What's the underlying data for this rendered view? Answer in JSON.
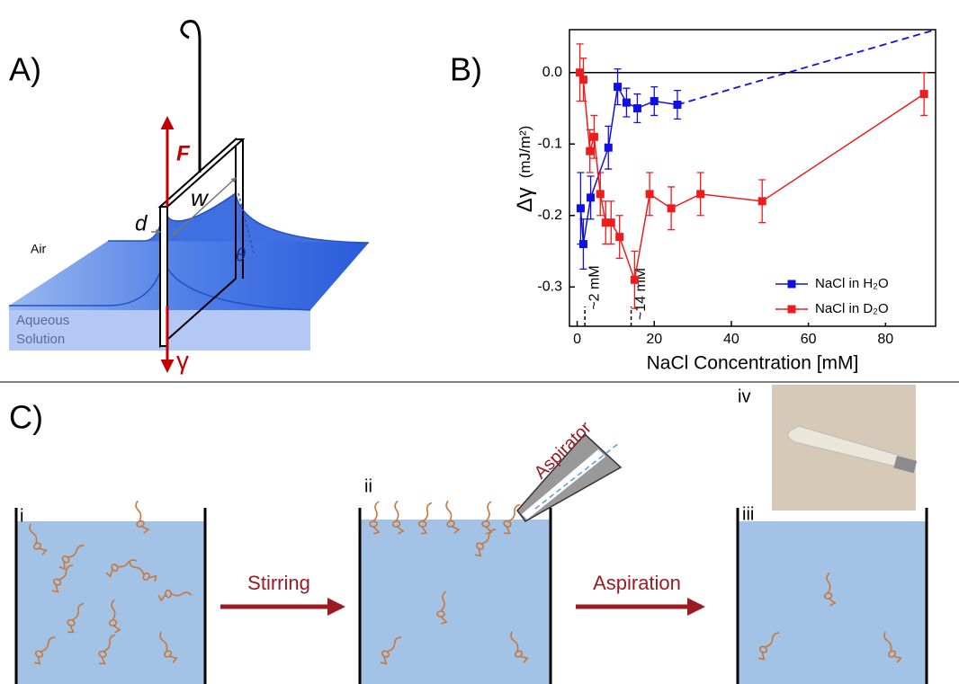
{
  "panel_a": {
    "label": "A)",
    "force": "F",
    "width": "w",
    "thickness": "d",
    "air": "Air",
    "solution": [
      "Aqueous",
      "Solution"
    ],
    "tension": "γ",
    "angle": "θ"
  },
  "panel_c": {
    "label": "C)",
    "stages": [
      "i",
      "ii",
      "iii",
      "iv"
    ],
    "steps": [
      "Stirring",
      "Aspiration"
    ],
    "tool": "Aspirator"
  },
  "chart_data": {
    "type": "line",
    "label": "B)",
    "xlabel": "NaCl Concentration [mM]",
    "ylabel": [
      "Δγ",
      "(mJ/m²)"
    ],
    "xlim": [
      -2,
      93
    ],
    "ylim": [
      -0.355,
      0.06
    ],
    "xticks": [
      0,
      20,
      40,
      60,
      80
    ],
    "yticks": [
      {
        "value": 0,
        "label": "0.0"
      },
      -0.1,
      -0.2,
      -0.3
    ],
    "legend": "lower right",
    "series": [
      {
        "name": "NaCl in H₂O",
        "color": "#1010e0",
        "x": [
          0.9,
          1.6,
          3.5,
          8.1,
          10.5,
          12.8,
          15.6,
          20,
          26
        ],
        "values": [
          -0.19,
          -0.24,
          -0.175,
          -0.105,
          -0.02,
          -0.042,
          -0.05,
          -0.04,
          -0.045
        ],
        "errors": [
          0.05,
          0.035,
          0.03,
          0.03,
          0.025,
          0.02,
          0.02,
          0.02,
          0.02
        ]
      },
      {
        "name": "NaCl in D₂O",
        "color": "#ee1c1c",
        "x": [
          0.7,
          1.6,
          3.3,
          4.4,
          6,
          7.4,
          8.8,
          11,
          14.9,
          18.8,
          24.4,
          32,
          48,
          90
        ],
        "values": [
          0,
          -0.01,
          -0.11,
          -0.09,
          -0.17,
          -0.21,
          -0.21,
          -0.23,
          -0.29,
          -0.17,
          -0.19,
          -0.17,
          -0.18,
          -0.03
        ],
        "errors": [
          0.04,
          0.03,
          0.03,
          0.03,
          0.03,
          0.03,
          0.03,
          0.03,
          0.04,
          0.03,
          0.03,
          0.03,
          0.03,
          0.03
        ]
      }
    ],
    "annotations": [
      {
        "text": "~2 mM",
        "x": 2
      },
      {
        "text": "~14 mM",
        "x": 14
      }
    ]
  }
}
